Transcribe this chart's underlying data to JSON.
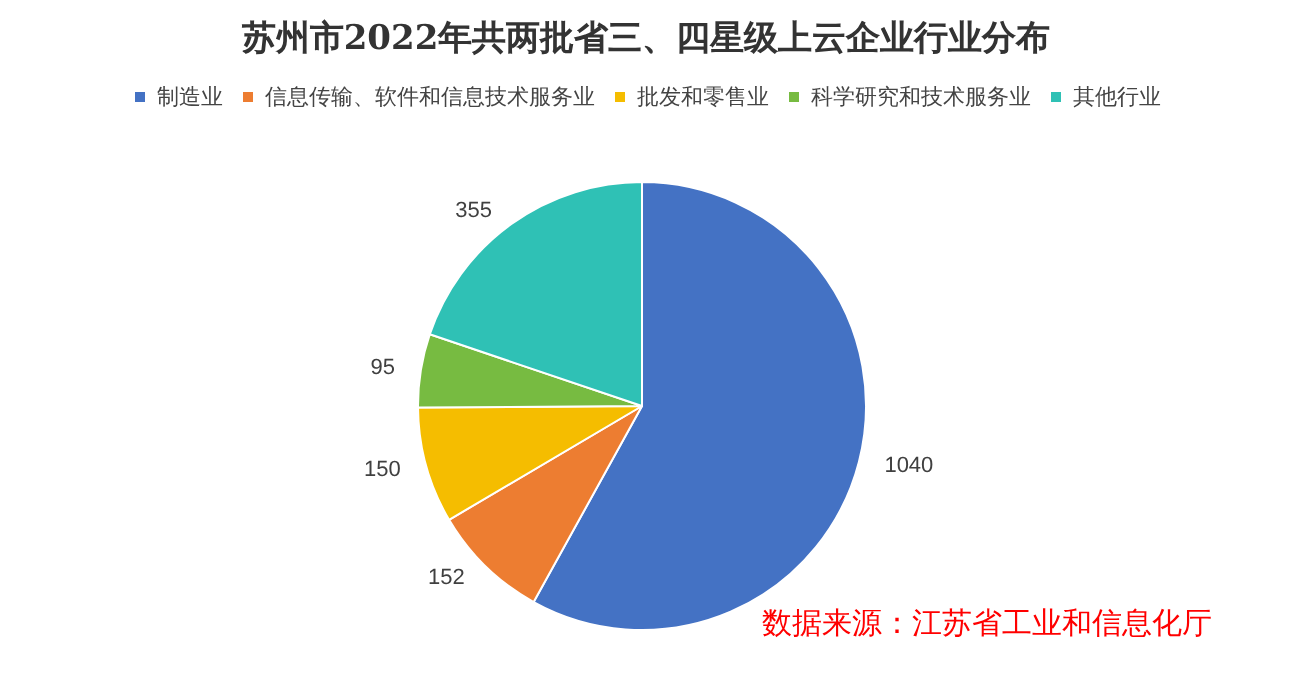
{
  "chart_data": {
    "type": "pie",
    "title": "苏州市2022年共两批省三、四星级上云企业行业分布",
    "categories": [
      "制造业",
      "信息传输、软件和信息技术服务业",
      "批发和零售业",
      "科学研究和技术服务业",
      "其他行业"
    ],
    "values": [
      1040,
      152,
      150,
      95,
      355
    ],
    "colors": [
      "#4472c4",
      "#ed7d31",
      "#f5bd00",
      "#77bb41",
      "#2fc1b5"
    ],
    "data_labels": true,
    "legend": "top",
    "annotations": [
      "数据来源：江苏省工业和信息化厅"
    ]
  }
}
